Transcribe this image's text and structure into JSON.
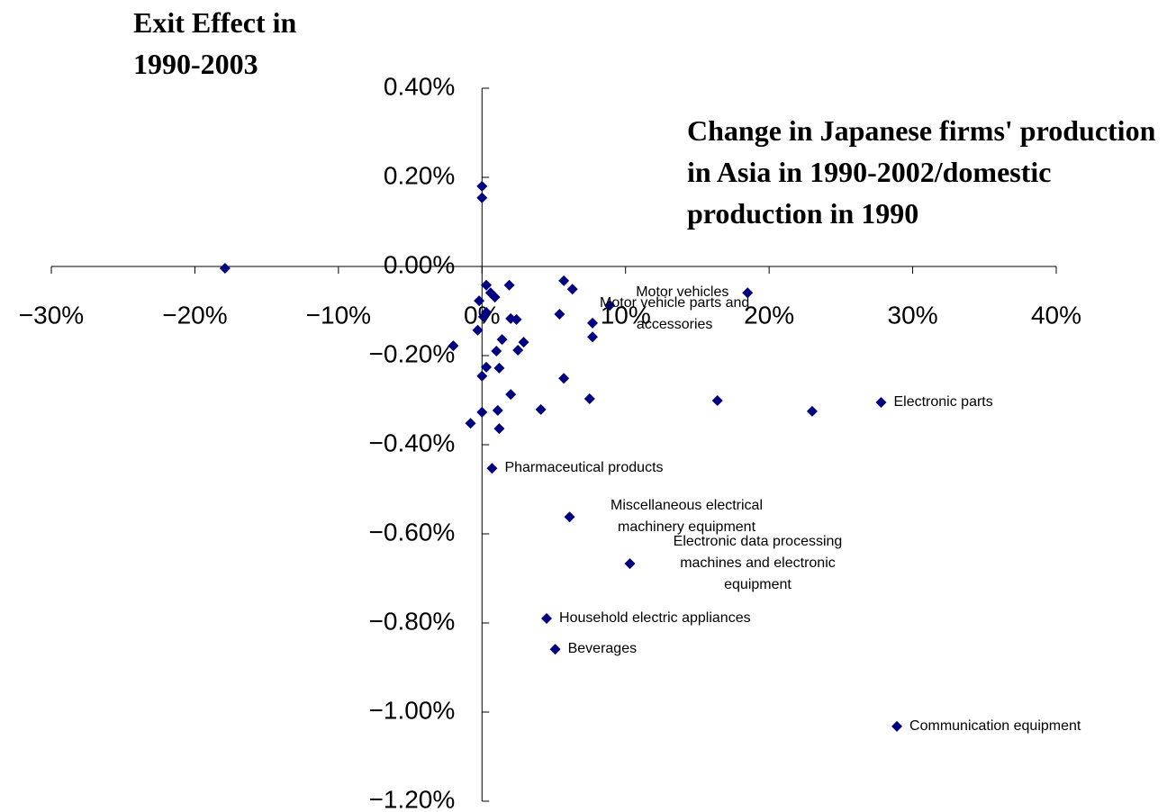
{
  "chart_data": {
    "type": "scatter",
    "y_title": "Exit Effect in 1990-2003",
    "x_title": "Change in Japanese firms' production in Asia in 1990-2002/domestic production in 1990",
    "xlim": [
      -30,
      40
    ],
    "xticks": [
      {
        "value": -30,
        "label": "−30%"
      },
      {
        "value": -20,
        "label": "−20%"
      },
      {
        "value": -10,
        "label": "−10%"
      },
      {
        "value": 0,
        "label": "0%"
      },
      {
        "value": 10,
        "label": "10%"
      },
      {
        "value": 20,
        "label": "20%"
      },
      {
        "value": 30,
        "label": "30%"
      },
      {
        "value": 40,
        "label": "40%"
      }
    ],
    "ylim": [
      -1.2,
      0.4
    ],
    "yticks": [
      {
        "value": 0.4,
        "label": "0.40%"
      },
      {
        "value": 0.2,
        "label": "0.20%"
      },
      {
        "value": 0,
        "label": "0.00%"
      },
      {
        "value": -0.2,
        "label": "−0.20%"
      },
      {
        "value": -0.4,
        "label": "−0.40%"
      },
      {
        "value": -0.6,
        "label": "−0.60%"
      },
      {
        "value": -0.8,
        "label": "−0.80%"
      },
      {
        "value": -1,
        "label": "−1.00%"
      },
      {
        "value": -1.2,
        "label": "−1.20%"
      }
    ],
    "color": "#000080",
    "x": [
      -17.9,
      0,
      0,
      -0.2,
      0.3,
      0.6,
      0.9,
      1.9,
      0.1,
      0.3,
      -0.3,
      -2.0,
      2.0,
      2.4,
      1.4,
      2.9,
      2.5,
      1.0,
      1.2,
      0.3,
      0,
      2.0,
      1.1,
      0,
      -0.8,
      1.2,
      4.1,
      5.7,
      6.3,
      5.4,
      7.7,
      7.7,
      8.9,
      18.5,
      5.7,
      7.5,
      16.4,
      23.0,
      27.8,
      0.7,
      6.1,
      10.3,
      4.5,
      5.1,
      28.9
    ],
    "values": [
      -0.004,
      0.18,
      0.154,
      -0.077,
      -0.042,
      -0.059,
      -0.069,
      -0.042,
      -0.113,
      -0.103,
      -0.143,
      -0.178,
      -0.117,
      -0.119,
      -0.164,
      -0.17,
      -0.188,
      -0.19,
      -0.228,
      -0.226,
      -0.246,
      -0.287,
      -0.323,
      -0.327,
      -0.352,
      -0.364,
      -0.321,
      -0.032,
      -0.051,
      -0.107,
      -0.127,
      -0.158,
      -0.087,
      -0.059,
      -0.251,
      -0.297,
      -0.301,
      -0.325,
      -0.305,
      -0.453,
      -0.562,
      -0.667,
      -0.79,
      -0.859,
      -1.032
    ],
    "point_labels": [
      null,
      null,
      null,
      null,
      null,
      null,
      null,
      null,
      null,
      null,
      null,
      null,
      null,
      null,
      null,
      null,
      null,
      null,
      null,
      null,
      null,
      null,
      null,
      null,
      null,
      null,
      null,
      null,
      null,
      null,
      null,
      null,
      "Motor vehicle parts and accessories",
      "Motor vehicles",
      null,
      null,
      null,
      null,
      "Electronic parts",
      "Pharmaceutical products",
      "Miscellaneous electrical machinery equipment",
      "Electronic data processing machines and electronic equipment",
      "Household electric appliances",
      "Beverages",
      "Communication equipment"
    ]
  }
}
